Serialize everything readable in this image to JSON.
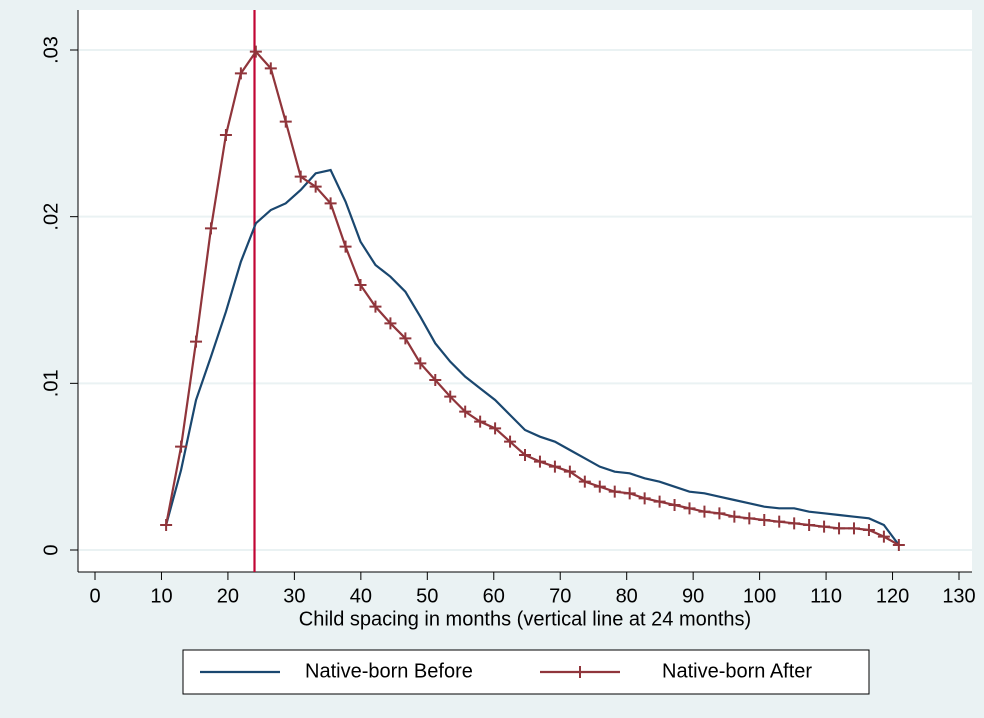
{
  "chart_data": {
    "type": "line",
    "xlabel": "Child spacing in months (vertical line at 24 months)",
    "x": [
      10.7,
      12.95,
      15.2,
      17.45,
      19.7,
      21.95,
      24.2,
      26.45,
      28.7,
      30.95,
      33.2,
      35.45,
      37.7,
      39.95,
      42.2,
      44.45,
      46.7,
      48.95,
      51.2,
      53.45,
      55.7,
      57.95,
      60.2,
      62.45,
      64.7,
      66.95,
      69.2,
      71.45,
      73.7,
      75.95,
      78.2,
      80.45,
      82.7,
      84.95,
      87.2,
      89.45,
      91.7,
      93.95,
      96.2,
      98.45,
      100.7,
      102.95,
      105.2,
      107.45,
      109.7,
      111.95,
      114.2,
      116.45,
      118.7,
      120.95
    ],
    "series": [
      {
        "name": "Native-born Before",
        "color": "#1a476f",
        "marker": false,
        "values": [
          0.0015,
          0.0048,
          0.009,
          0.0116,
          0.0143,
          0.0173,
          0.0196,
          0.0204,
          0.0208,
          0.0216,
          0.0226,
          0.0228,
          0.0209,
          0.0185,
          0.0171,
          0.0164,
          0.0155,
          0.014,
          0.0124,
          0.0113,
          0.0104,
          0.0097,
          0.009,
          0.0081,
          0.0072,
          0.0068,
          0.0065,
          0.006,
          0.0055,
          0.005,
          0.0047,
          0.0046,
          0.0043,
          0.0041,
          0.0038,
          0.0035,
          0.0034,
          0.0032,
          0.003,
          0.0028,
          0.0026,
          0.0025,
          0.0025,
          0.0023,
          0.0022,
          0.0021,
          0.002,
          0.0019,
          0.0015,
          0.0003
        ]
      },
      {
        "name": "Native-born After",
        "color": "#90353b",
        "marker": true,
        "values": [
          0.0015,
          0.0062,
          0.0125,
          0.0193,
          0.0249,
          0.0286,
          0.0299,
          0.0289,
          0.0257,
          0.0224,
          0.0218,
          0.0208,
          0.0182,
          0.0159,
          0.0146,
          0.0136,
          0.0127,
          0.0112,
          0.0102,
          0.0092,
          0.0083,
          0.0077,
          0.0073,
          0.0065,
          0.0057,
          0.0053,
          0.005,
          0.0047,
          0.0041,
          0.0038,
          0.0035,
          0.0034,
          0.0031,
          0.0029,
          0.0027,
          0.0025,
          0.0023,
          0.0022,
          0.002,
          0.0019,
          0.0018,
          0.0017,
          0.0016,
          0.0015,
          0.0014,
          0.0013,
          0.0013,
          0.0012,
          0.0008,
          0.0003
        ]
      }
    ],
    "vline": 24,
    "vline_color": "#c10534",
    "xlim": [
      0,
      130
    ],
    "xticks": [
      0,
      10,
      20,
      30,
      40,
      50,
      60,
      70,
      80,
      90,
      100,
      110,
      120,
      130
    ],
    "ylim": [
      0,
      0.03
    ],
    "yticks": [
      0,
      {
        "value": 0.01,
        "label": ".01"
      },
      {
        "value": 0.02,
        "label": ".02"
      },
      {
        "value": 0.03,
        "label": ".03"
      }
    ],
    "grid": true,
    "legend": "bottom"
  }
}
